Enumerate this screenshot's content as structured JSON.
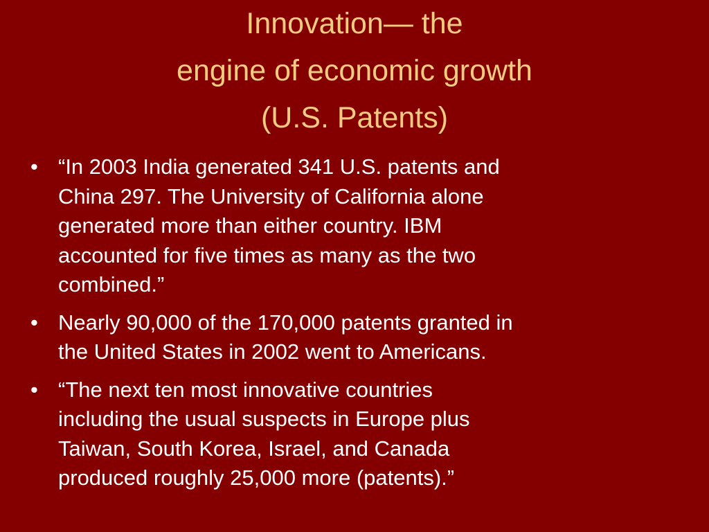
{
  "slide": {
    "title": [
      "Innovation— the",
      "engine of economic growth",
      "(U.S. Patents)"
    ],
    "bullets": [
      [
        "“In 2003 India generated 341 U.S. patents and",
        "China 297. The University of California alone",
        "generated more than either country. IBM",
        "accounted for five times as many as the two",
        "combined.”"
      ],
      [
        "Nearly 90,000 of the 170,000 patents granted in",
        "the United States in 2002 went to Americans."
      ],
      [
        "“The next ten most innovative countries",
        "including the usual suspects in Europe plus",
        "Taiwan, South Korea, Israel, and Canada",
        "produced roughly 25,000 more (patents).”"
      ]
    ]
  }
}
